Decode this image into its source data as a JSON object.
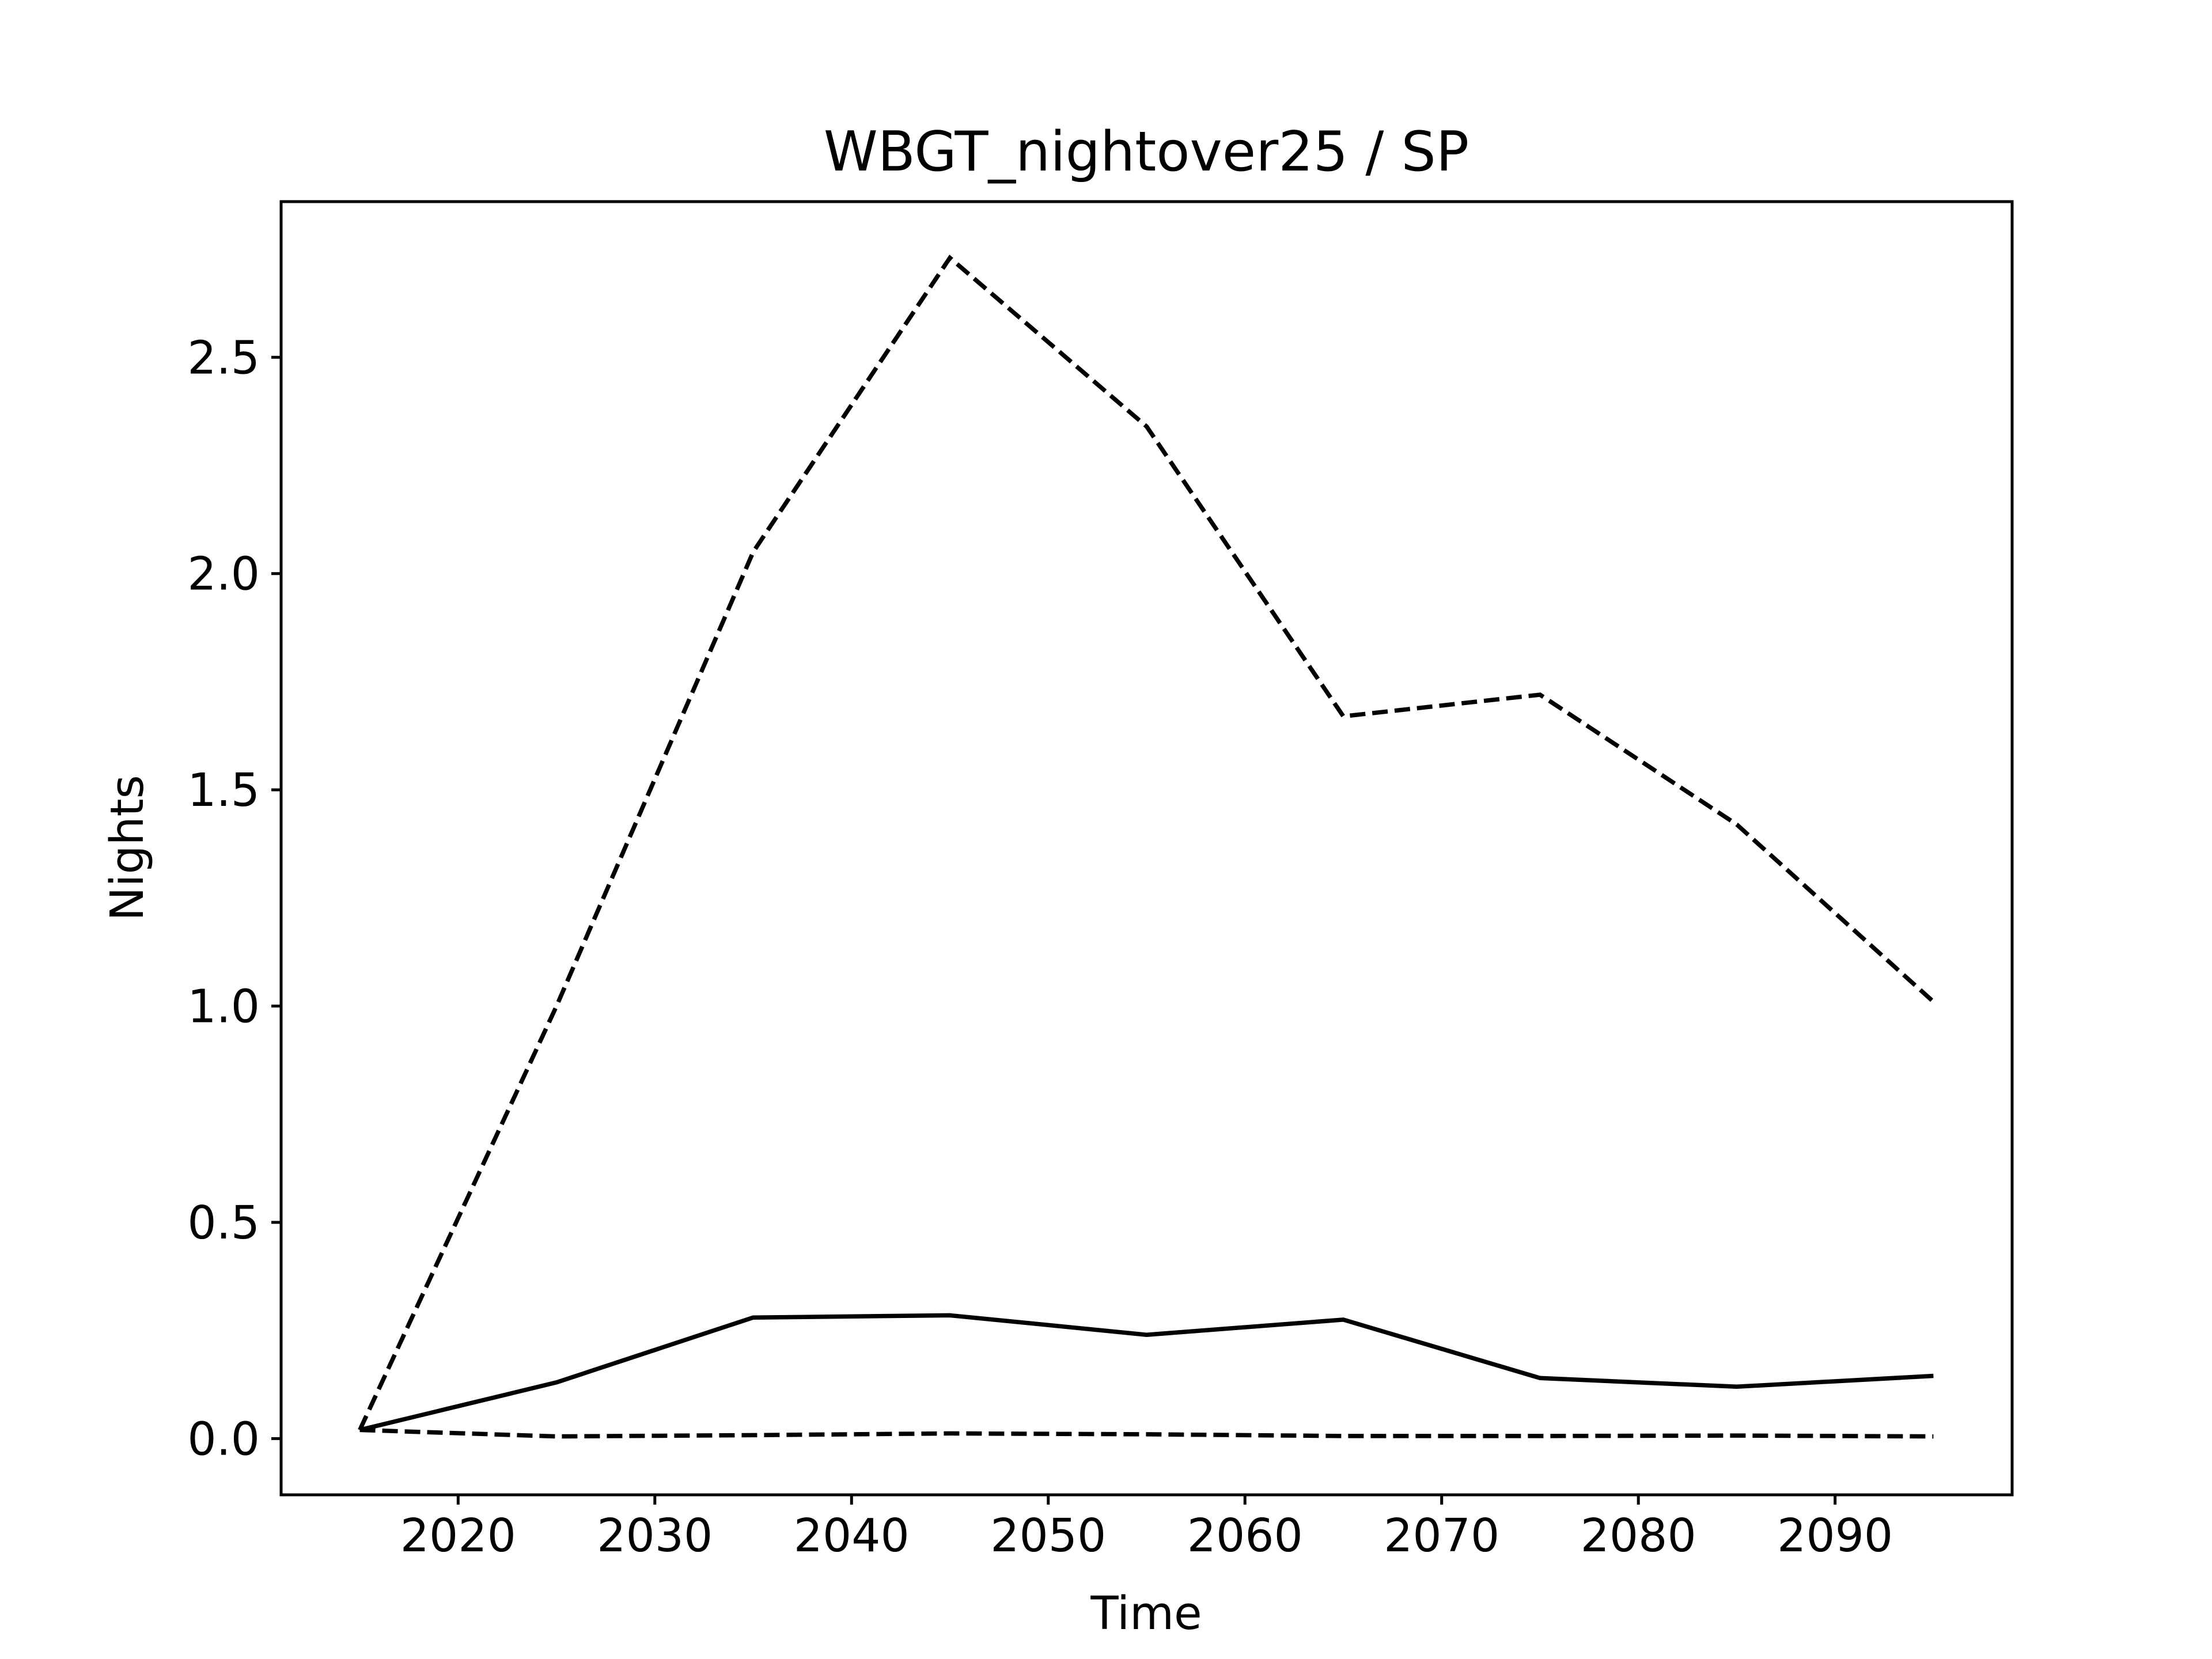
{
  "chart_data": {
    "type": "line",
    "title": "WBGT_nightover25 / SP",
    "xlabel": "Time",
    "ylabel": "Nights",
    "xlim": [
      2011,
      2099
    ],
    "ylim": [
      -0.13,
      2.86
    ],
    "xticks": [
      "2020",
      "2030",
      "2040",
      "2050",
      "2060",
      "2070",
      "2080",
      "2090"
    ],
    "yticks": [
      "0.0",
      "0.5",
      "1.0",
      "1.5",
      "2.0",
      "2.5"
    ],
    "grid": false,
    "line_color": "#000000",
    "x": [
      2015,
      2025,
      2035,
      2045,
      2055,
      2065,
      2075,
      2085,
      2095
    ],
    "series": [
      {
        "style": "dashed",
        "values": [
          0.02,
          1.0,
          2.05,
          2.73,
          2.34,
          1.67,
          1.72,
          1.42,
          1.01
        ]
      },
      {
        "style": "solid",
        "values": [
          0.02,
          0.13,
          0.28,
          0.285,
          0.24,
          0.275,
          0.14,
          0.12,
          0.145
        ]
      },
      {
        "style": "dashed",
        "values": [
          0.02,
          0.005,
          0.008,
          0.012,
          0.01,
          0.006,
          0.006,
          0.007,
          0.005
        ]
      }
    ]
  }
}
